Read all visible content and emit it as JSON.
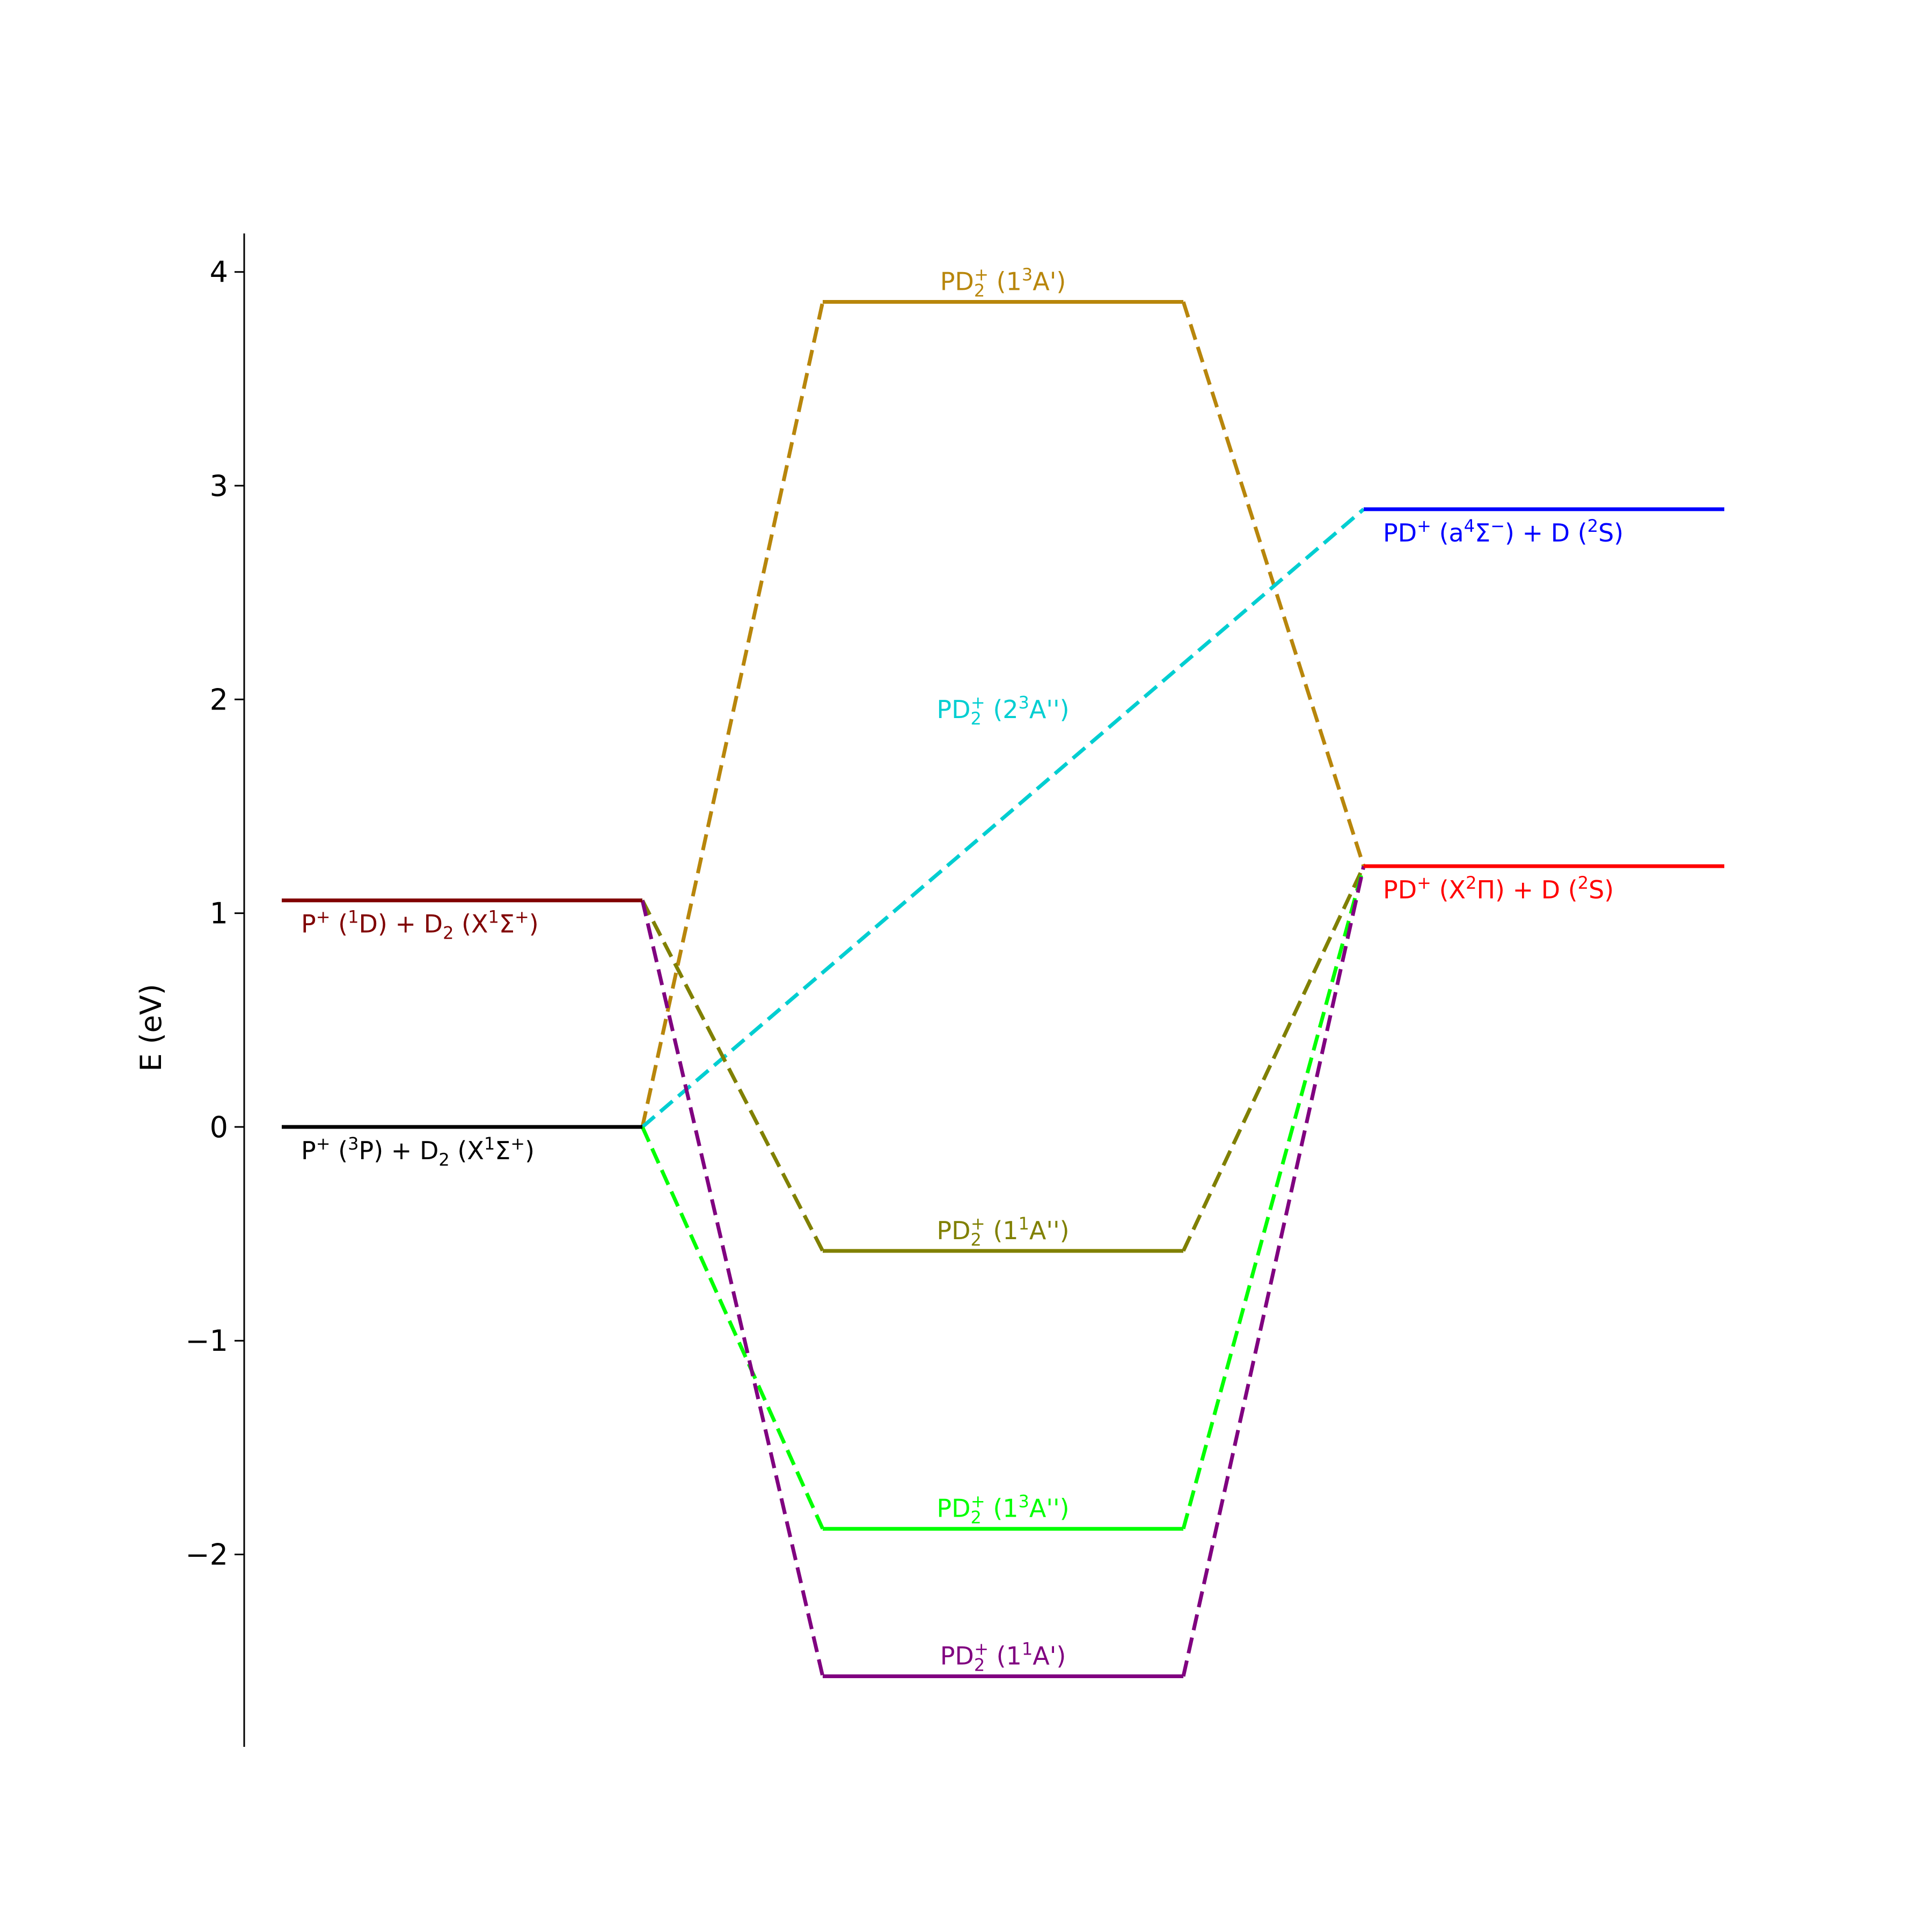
{
  "chart_data": {
    "type": "energy-level-diagram",
    "ylabel": "E (eV)",
    "ylim": [
      -2.9,
      4.18
    ],
    "yticks": [
      {
        "value": 4,
        "label": "4"
      },
      {
        "value": 3,
        "label": "3"
      },
      {
        "value": 2,
        "label": "2"
      },
      {
        "value": 1,
        "label": "1"
      },
      {
        "value": 0,
        "label": "0"
      },
      {
        "value": -1,
        "label": "−1"
      },
      {
        "value": -2,
        "label": "−2"
      }
    ],
    "columns": {
      "reactants": [
        0,
        1.0
      ],
      "intermediates": [
        1.5,
        2.5
      ],
      "products": [
        3.0,
        4.0
      ]
    },
    "levels": [
      {
        "id": "p3p",
        "column": "reactants",
        "energy": 0.0,
        "color": "#000000",
        "label_parts": [
          [
            "P",
            "n"
          ],
          [
            "+",
            "sup"
          ],
          [
            " (",
            "n"
          ],
          [
            "3",
            "sup"
          ],
          [
            "P) + D",
            "n"
          ],
          [
            "2",
            "sub"
          ],
          [
            " (X",
            "n"
          ],
          [
            "1",
            "sup"
          ],
          [
            "Σ",
            "n"
          ],
          [
            "+",
            "sup"
          ],
          [
            ")",
            "n"
          ]
        ]
      },
      {
        "id": "p1d",
        "column": "reactants",
        "energy": 1.06,
        "color": "#800000",
        "label_parts": [
          [
            "P",
            "n"
          ],
          [
            "+",
            "sup"
          ],
          [
            " (",
            "n"
          ],
          [
            "1",
            "sup"
          ],
          [
            "D) + D",
            "n"
          ],
          [
            "2",
            "sub"
          ],
          [
            " (X",
            "n"
          ],
          [
            "1",
            "sup"
          ],
          [
            "Σ",
            "n"
          ],
          [
            "+",
            "sup"
          ],
          [
            ")",
            "n"
          ]
        ]
      },
      {
        "id": "i13ap",
        "column": "intermediates",
        "energy": 3.86,
        "color": "#b8860b",
        "label_parts": [
          [
            "PD",
            "n"
          ],
          [
            "2",
            "sub"
          ],
          [
            "+",
            "sup"
          ],
          [
            " (1",
            "n"
          ],
          [
            "3",
            "sup"
          ],
          [
            "A')",
            "n"
          ]
        ]
      },
      {
        "id": "i23app",
        "column": "intermediates",
        "energy": null,
        "label_energy": 1.95,
        "color": "#00ced1",
        "label_parts": [
          [
            "PD",
            "n"
          ],
          [
            "2",
            "sub"
          ],
          [
            "+",
            "sup"
          ],
          [
            " (2",
            "n"
          ],
          [
            "3",
            "sup"
          ],
          [
            "A'')",
            "n"
          ]
        ]
      },
      {
        "id": "i11app",
        "column": "intermediates",
        "energy": -0.58,
        "color": "#808000",
        "label_parts": [
          [
            "PD",
            "n"
          ],
          [
            "2",
            "sub"
          ],
          [
            "+",
            "sup"
          ],
          [
            " (1",
            "n"
          ],
          [
            "1",
            "sup"
          ],
          [
            "A'')",
            "n"
          ]
        ]
      },
      {
        "id": "i13app",
        "column": "intermediates",
        "energy": -1.88,
        "color": "#00ff00",
        "label_parts": [
          [
            "PD",
            "n"
          ],
          [
            "2",
            "sub"
          ],
          [
            "+",
            "sup"
          ],
          [
            " (1",
            "n"
          ],
          [
            "3",
            "sup"
          ],
          [
            "A'')",
            "n"
          ]
        ]
      },
      {
        "id": "i11ap",
        "column": "intermediates",
        "energy": -2.57,
        "color": "#800080",
        "label_parts": [
          [
            "PD",
            "n"
          ],
          [
            "2",
            "sub"
          ],
          [
            "+",
            "sup"
          ],
          [
            " (1",
            "n"
          ],
          [
            "1",
            "sup"
          ],
          [
            "A')",
            "n"
          ]
        ]
      },
      {
        "id": "pa4",
        "column": "products",
        "energy": 2.89,
        "color": "#0000ff",
        "label_parts": [
          [
            "PD",
            "n"
          ],
          [
            "+",
            "sup"
          ],
          [
            " (a",
            "n"
          ],
          [
            "4",
            "sup"
          ],
          [
            "Σ",
            "n"
          ],
          [
            "−",
            "sup"
          ],
          [
            ") + D (",
            "n"
          ],
          [
            "2",
            "sup"
          ],
          [
            "S)",
            "n"
          ]
        ]
      },
      {
        "id": "px2",
        "column": "products",
        "energy": 1.22,
        "color": "#ff0000",
        "label_parts": [
          [
            "PD",
            "n"
          ],
          [
            "+",
            "sup"
          ],
          [
            " (X",
            "n"
          ],
          [
            "2",
            "sup"
          ],
          [
            "Π) + D (",
            "n"
          ],
          [
            "2",
            "sup"
          ],
          [
            "S)",
            "n"
          ]
        ]
      }
    ],
    "connections": [
      {
        "color": "#b8860b",
        "points": [
          [
            1.0,
            0.0
          ],
          [
            1.5,
            3.86
          ]
        ]
      },
      {
        "color": "#b8860b",
        "points": [
          [
            2.5,
            3.86
          ],
          [
            3.0,
            1.22
          ]
        ]
      },
      {
        "color": "#00ced1",
        "points": [
          [
            1.0,
            0.0
          ],
          [
            3.0,
            2.89
          ]
        ]
      },
      {
        "color": "#808000",
        "points": [
          [
            1.0,
            1.06
          ],
          [
            1.5,
            -0.58
          ]
        ]
      },
      {
        "color": "#808000",
        "points": [
          [
            2.5,
            -0.58
          ],
          [
            3.0,
            1.22
          ]
        ]
      },
      {
        "color": "#00ff00",
        "points": [
          [
            1.0,
            0.0
          ],
          [
            1.5,
            -1.88
          ]
        ]
      },
      {
        "color": "#00ff00",
        "points": [
          [
            2.5,
            -1.88
          ],
          [
            3.0,
            1.22
          ]
        ]
      },
      {
        "color": "#800080",
        "points": [
          [
            1.0,
            1.06
          ],
          [
            1.5,
            -2.57
          ]
        ]
      },
      {
        "color": "#800080",
        "points": [
          [
            2.5,
            -2.57
          ],
          [
            3.0,
            1.22
          ]
        ]
      }
    ]
  }
}
